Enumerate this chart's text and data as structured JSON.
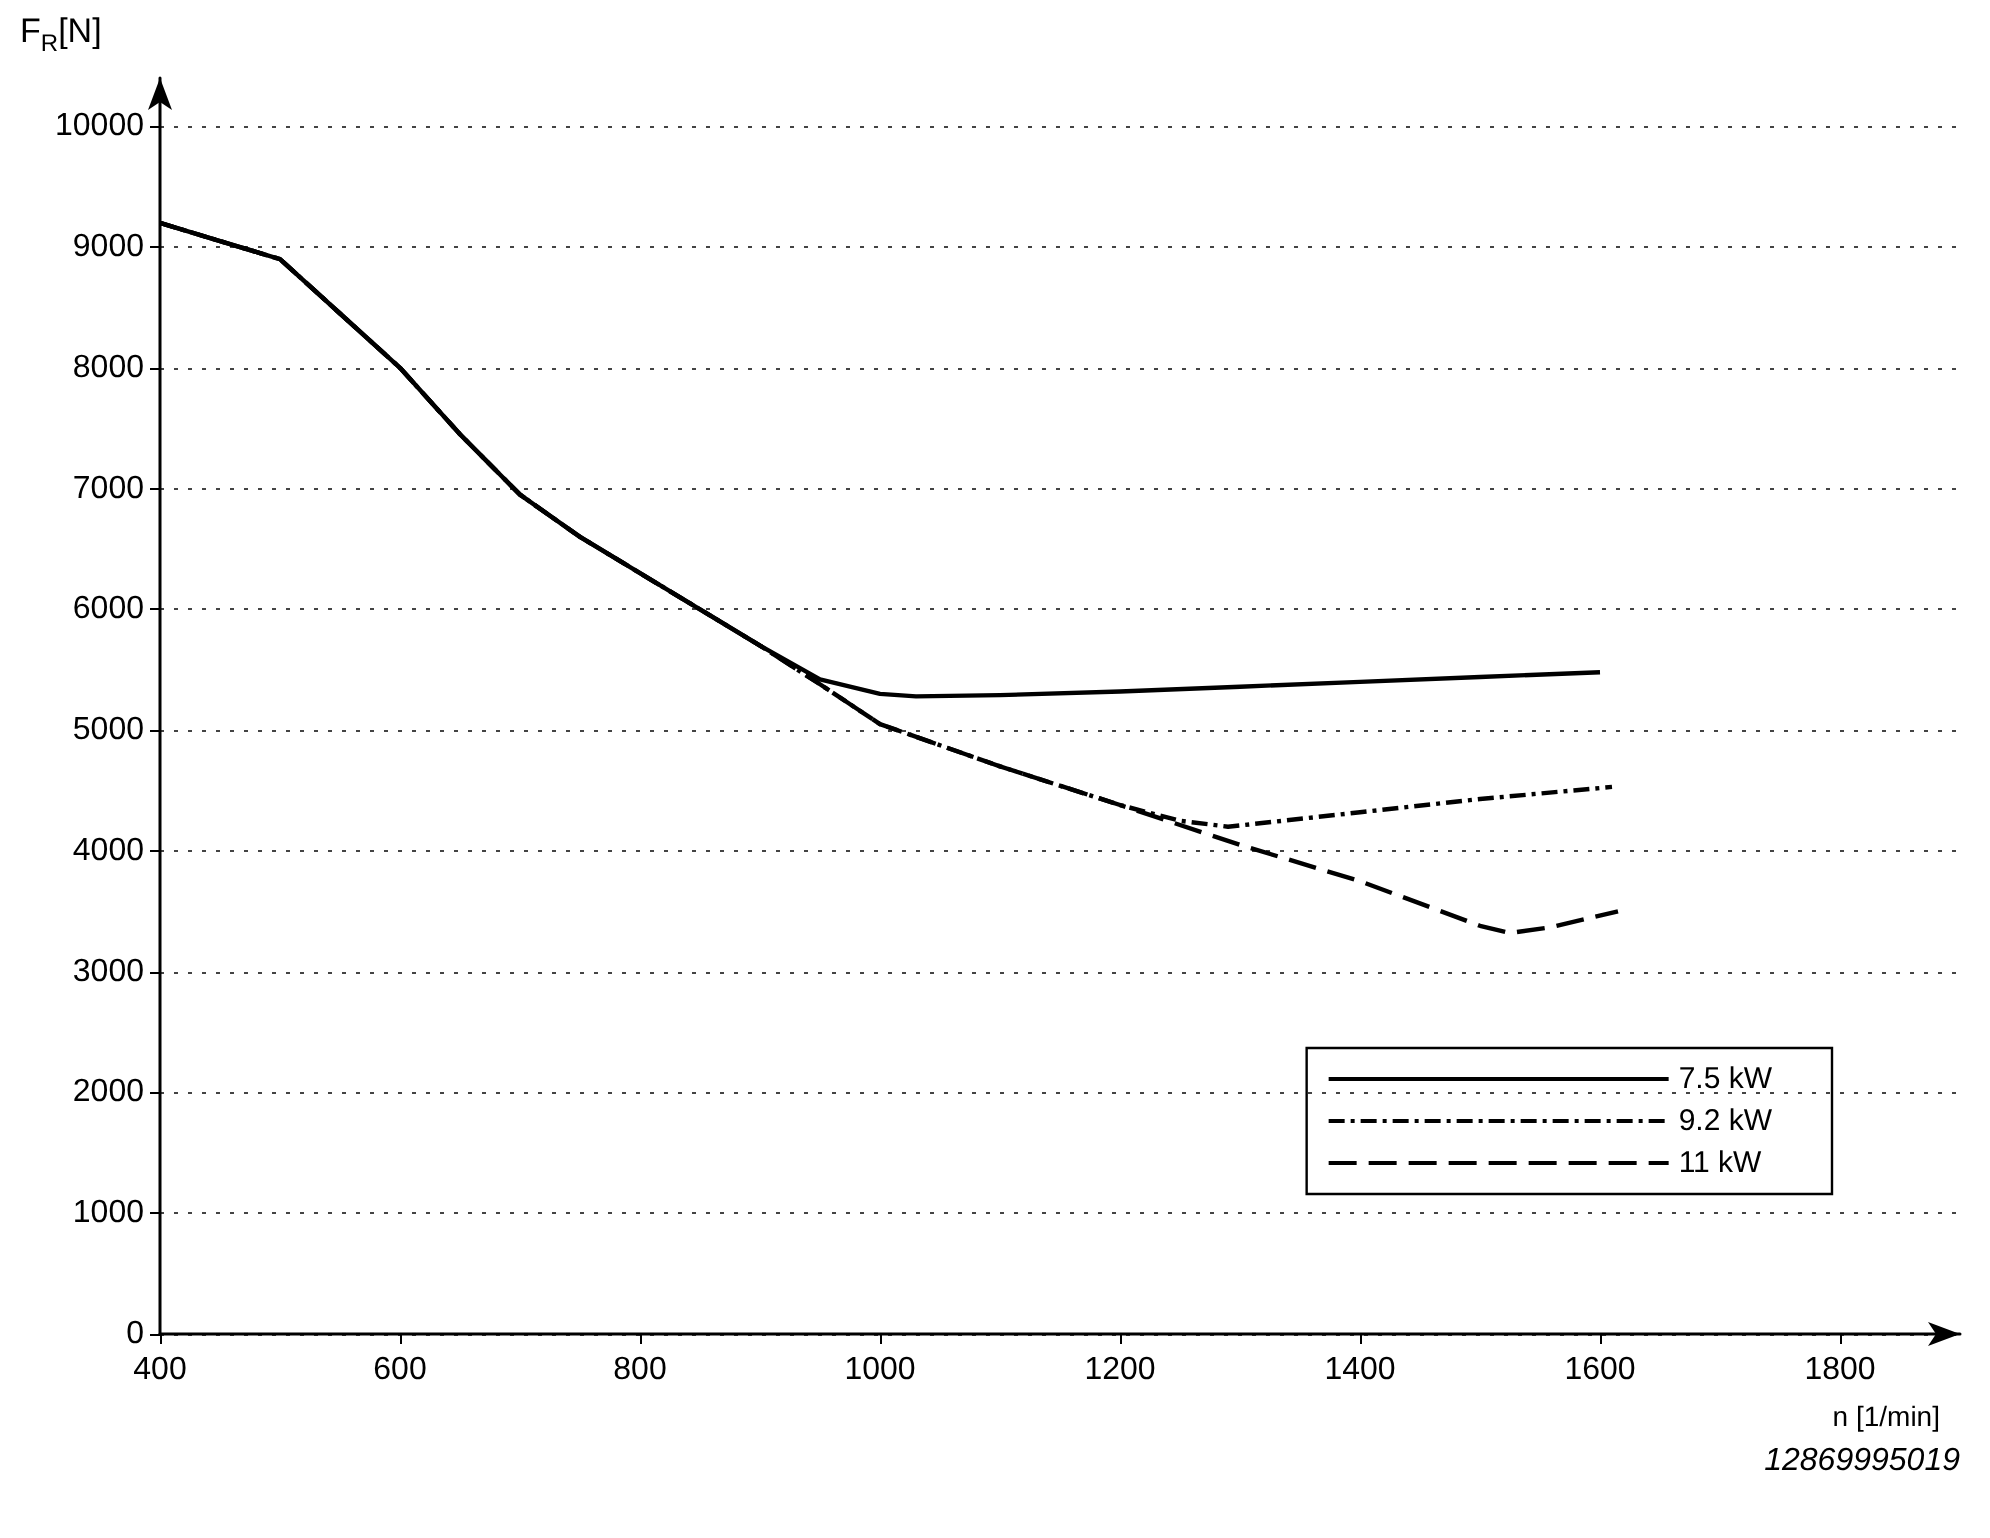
{
  "chart_data": {
    "type": "line",
    "xlabel": "n [1/min]",
    "ylabel": "F$_{R}$[N]",
    "annotations": [
      "12869995019"
    ],
    "xlim": [
      400,
      1900
    ],
    "xticks": [
      400,
      600,
      800,
      1000,
      1200,
      1400,
      1600,
      1800
    ],
    "ylim": [
      0,
      10400
    ],
    "yticks": [
      0,
      1000,
      2000,
      3000,
      4000,
      5000,
      6000,
      7000,
      8000,
      9000,
      10000
    ],
    "grid": "y",
    "legend": "bottom right",
    "marker": "none",
    "series": [
      {
        "name": "7.5 kW",
        "color": "#000000",
        "line_style": "solid",
        "x": [
          400,
          450,
          500,
          550,
          600,
          650,
          700,
          750,
          800,
          850,
          900,
          950,
          1000,
          1030,
          1100,
          1200,
          1300,
          1400,
          1500,
          1600
        ],
        "values": [
          9200,
          9050,
          8900,
          8450,
          8000,
          7450,
          6950,
          6600,
          6300,
          6000,
          5700,
          5420,
          5300,
          5280,
          5290,
          5320,
          5360,
          5400,
          5440,
          5480
        ]
      },
      {
        "name": "9.2 kW",
        "color": "#000000",
        "line_style": "dashdot",
        "x": [
          400,
          450,
          500,
          550,
          600,
          650,
          700,
          750,
          800,
          850,
          900,
          950,
          1000,
          1100,
          1200,
          1250,
          1290,
          1400,
          1500,
          1610
        ],
        "values": [
          9200,
          9050,
          8900,
          8450,
          8000,
          7450,
          6950,
          6600,
          6300,
          6000,
          5700,
          5380,
          5050,
          4700,
          4380,
          4250,
          4200,
          4320,
          4430,
          4530
        ]
      },
      {
        "name": "11 kW",
        "color": "#000000",
        "line_style": "dashed",
        "x": [
          400,
          450,
          500,
          550,
          600,
          650,
          700,
          750,
          800,
          850,
          900,
          950,
          1000,
          1100,
          1200,
          1300,
          1400,
          1500,
          1525,
          1560,
          1615
        ],
        "values": [
          9200,
          9050,
          8900,
          8450,
          8000,
          7450,
          6950,
          6600,
          6300,
          6000,
          5700,
          5380,
          5050,
          4700,
          4380,
          4050,
          3750,
          3380,
          3320,
          3370,
          3500
        ]
      }
    ]
  }
}
